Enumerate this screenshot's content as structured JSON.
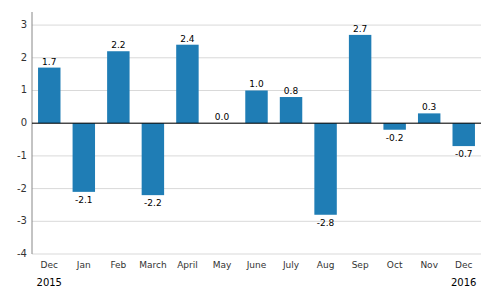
{
  "chart_data": {
    "type": "bar",
    "categories": [
      "Dec",
      "Jan",
      "Feb",
      "March",
      "April",
      "May",
      "June",
      "July",
      "Aug",
      "Sep",
      "Oct",
      "Nov",
      "Dec"
    ],
    "values": [
      1.7,
      -2.1,
      2.2,
      -2.2,
      2.4,
      0.0,
      1.0,
      0.8,
      -2.8,
      2.7,
      -0.2,
      0.3,
      -0.7
    ],
    "value_labels": [
      "1.7",
      "-2.1",
      "2.2",
      "-2.2",
      "2.4",
      "0.0",
      "1.0",
      "0.8",
      "-2.8",
      "2.7",
      "-0.2",
      "0.3",
      "-0.7"
    ],
    "data_labels": true,
    "color": "#1f7db5",
    "ylim": [
      -4,
      3.4
    ],
    "yticks": [
      -4,
      -3,
      -2,
      -1,
      0,
      1,
      2,
      3
    ],
    "grid": true,
    "annotations": [
      {
        "text": "2015",
        "index": 0
      },
      {
        "text": "2016",
        "index": 12
      }
    ]
  }
}
